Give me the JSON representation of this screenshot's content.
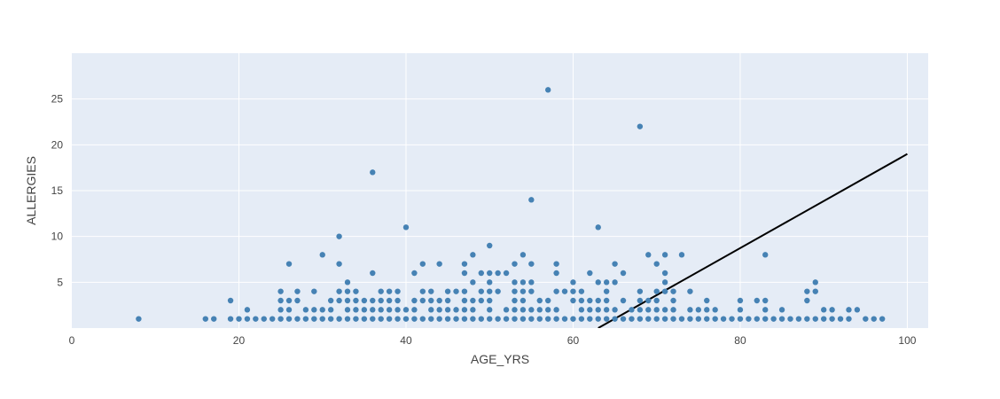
{
  "chart_data": {
    "type": "scatter",
    "xlabel": "AGE_YRS",
    "ylabel": "ALLERGIES",
    "xlim": [
      0,
      102.5
    ],
    "ylim": [
      0,
      30
    ],
    "x_ticks": [
      0,
      20,
      40,
      60,
      80,
      100
    ],
    "y_ticks": [
      5,
      10,
      15,
      20,
      25
    ],
    "grid": true,
    "legend": "none",
    "colors": {
      "plot_bg": "#e5ecf6",
      "grid": "#ffffff",
      "marker": "#4682b4",
      "line": "#000000"
    },
    "series": [
      {
        "type": "scatter",
        "points": [
          [
            8,
            1
          ],
          [
            16,
            1
          ],
          [
            17,
            1
          ],
          [
            19,
            1
          ],
          [
            19,
            3
          ],
          [
            20,
            1
          ],
          [
            21,
            1
          ],
          [
            21,
            2
          ],
          [
            22,
            1
          ],
          [
            23,
            1
          ],
          [
            24,
            1
          ],
          [
            25,
            1
          ],
          [
            25,
            2
          ],
          [
            25,
            3
          ],
          [
            25,
            4
          ],
          [
            26,
            1
          ],
          [
            26,
            2
          ],
          [
            26,
            3
          ],
          [
            26,
            7
          ],
          [
            27,
            1
          ],
          [
            27,
            3
          ],
          [
            27,
            4
          ],
          [
            28,
            1
          ],
          [
            28,
            2
          ],
          [
            29,
            1
          ],
          [
            29,
            2
          ],
          [
            29,
            4
          ],
          [
            30,
            1
          ],
          [
            30,
            2
          ],
          [
            30,
            8
          ],
          [
            31,
            1
          ],
          [
            31,
            2
          ],
          [
            31,
            3
          ],
          [
            32,
            1
          ],
          [
            32,
            3
          ],
          [
            32,
            4
          ],
          [
            32,
            7
          ],
          [
            32,
            10
          ],
          [
            33,
            1
          ],
          [
            33,
            2
          ],
          [
            33,
            3
          ],
          [
            33,
            4
          ],
          [
            33,
            5
          ],
          [
            34,
            1
          ],
          [
            34,
            2
          ],
          [
            34,
            3
          ],
          [
            34,
            4
          ],
          [
            35,
            1
          ],
          [
            35,
            2
          ],
          [
            35,
            3
          ],
          [
            36,
            1
          ],
          [
            36,
            2
          ],
          [
            36,
            3
          ],
          [
            36,
            6
          ],
          [
            36,
            17
          ],
          [
            37,
            1
          ],
          [
            37,
            2
          ],
          [
            37,
            3
          ],
          [
            37,
            4
          ],
          [
            38,
            1
          ],
          [
            38,
            2
          ],
          [
            38,
            3
          ],
          [
            38,
            4
          ],
          [
            39,
            1
          ],
          [
            39,
            2
          ],
          [
            39,
            3
          ],
          [
            39,
            4
          ],
          [
            40,
            1
          ],
          [
            40,
            2
          ],
          [
            40,
            11
          ],
          [
            41,
            1
          ],
          [
            41,
            2
          ],
          [
            41,
            3
          ],
          [
            41,
            6
          ],
          [
            42,
            1
          ],
          [
            42,
            3
          ],
          [
            42,
            4
          ],
          [
            42,
            7
          ],
          [
            43,
            1
          ],
          [
            43,
            2
          ],
          [
            43,
            3
          ],
          [
            43,
            4
          ],
          [
            44,
            1
          ],
          [
            44,
            2
          ],
          [
            44,
            3
          ],
          [
            44,
            7
          ],
          [
            45,
            1
          ],
          [
            45,
            2
          ],
          [
            45,
            3
          ],
          [
            45,
            4
          ],
          [
            46,
            1
          ],
          [
            46,
            2
          ],
          [
            46,
            4
          ],
          [
            47,
            1
          ],
          [
            47,
            2
          ],
          [
            47,
            3
          ],
          [
            47,
            4
          ],
          [
            47,
            6
          ],
          [
            47,
            7
          ],
          [
            48,
            1
          ],
          [
            48,
            2
          ],
          [
            48,
            3
          ],
          [
            48,
            5
          ],
          [
            48,
            8
          ],
          [
            49,
            1
          ],
          [
            49,
            3
          ],
          [
            49,
            4
          ],
          [
            49,
            6
          ],
          [
            50,
            1
          ],
          [
            50,
            2
          ],
          [
            50,
            3
          ],
          [
            50,
            4
          ],
          [
            50,
            5
          ],
          [
            50,
            6
          ],
          [
            50,
            9
          ],
          [
            51,
            1
          ],
          [
            51,
            4
          ],
          [
            51,
            6
          ],
          [
            52,
            1
          ],
          [
            52,
            2
          ],
          [
            52,
            6
          ],
          [
            53,
            1
          ],
          [
            53,
            2
          ],
          [
            53,
            3
          ],
          [
            53,
            4
          ],
          [
            53,
            5
          ],
          [
            53,
            7
          ],
          [
            54,
            1
          ],
          [
            54,
            2
          ],
          [
            54,
            3
          ],
          [
            54,
            4
          ],
          [
            54,
            5
          ],
          [
            54,
            8
          ],
          [
            55,
            1
          ],
          [
            55,
            2
          ],
          [
            55,
            4
          ],
          [
            55,
            5
          ],
          [
            55,
            7
          ],
          [
            55,
            14
          ],
          [
            56,
            1
          ],
          [
            56,
            2
          ],
          [
            56,
            3
          ],
          [
            57,
            1
          ],
          [
            57,
            2
          ],
          [
            57,
            3
          ],
          [
            57,
            26
          ],
          [
            58,
            1
          ],
          [
            58,
            2
          ],
          [
            58,
            4
          ],
          [
            58,
            6
          ],
          [
            58,
            7
          ],
          [
            59,
            1
          ],
          [
            59,
            4
          ],
          [
            60,
            1
          ],
          [
            60,
            3
          ],
          [
            60,
            4
          ],
          [
            60,
            5
          ],
          [
            61,
            1
          ],
          [
            61,
            2
          ],
          [
            61,
            3
          ],
          [
            61,
            4
          ],
          [
            62,
            1
          ],
          [
            62,
            2
          ],
          [
            62,
            3
          ],
          [
            62,
            6
          ],
          [
            63,
            1
          ],
          [
            63,
            2
          ],
          [
            63,
            3
          ],
          [
            63,
            5
          ],
          [
            63,
            11
          ],
          [
            64,
            1
          ],
          [
            64,
            2
          ],
          [
            64,
            3
          ],
          [
            64,
            4
          ],
          [
            64,
            5
          ],
          [
            65,
            1
          ],
          [
            65,
            2
          ],
          [
            65,
            5
          ],
          [
            65,
            7
          ],
          [
            66,
            1
          ],
          [
            66,
            3
          ],
          [
            66,
            6
          ],
          [
            67,
            1
          ],
          [
            67,
            2
          ],
          [
            68,
            1
          ],
          [
            68,
            2
          ],
          [
            68,
            3
          ],
          [
            68,
            4
          ],
          [
            68,
            22
          ],
          [
            69,
            1
          ],
          [
            69,
            2
          ],
          [
            69,
            3
          ],
          [
            69,
            8
          ],
          [
            70,
            1
          ],
          [
            70,
            2
          ],
          [
            70,
            3
          ],
          [
            70,
            4
          ],
          [
            70,
            7
          ],
          [
            71,
            1
          ],
          [
            71,
            2
          ],
          [
            71,
            4
          ],
          [
            71,
            5
          ],
          [
            71,
            6
          ],
          [
            71,
            8
          ],
          [
            72,
            1
          ],
          [
            72,
            2
          ],
          [
            72,
            3
          ],
          [
            72,
            4
          ],
          [
            73,
            1
          ],
          [
            73,
            8
          ],
          [
            74,
            1
          ],
          [
            74,
            2
          ],
          [
            74,
            4
          ],
          [
            75,
            1
          ],
          [
            75,
            2
          ],
          [
            76,
            1
          ],
          [
            76,
            2
          ],
          [
            76,
            3
          ],
          [
            77,
            1
          ],
          [
            77,
            2
          ],
          [
            78,
            1
          ],
          [
            79,
            1
          ],
          [
            80,
            1
          ],
          [
            80,
            2
          ],
          [
            80,
            3
          ],
          [
            81,
            1
          ],
          [
            82,
            1
          ],
          [
            82,
            3
          ],
          [
            83,
            1
          ],
          [
            83,
            2
          ],
          [
            83,
            3
          ],
          [
            83,
            8
          ],
          [
            84,
            1
          ],
          [
            85,
            1
          ],
          [
            85,
            2
          ],
          [
            86,
            1
          ],
          [
            87,
            1
          ],
          [
            88,
            1
          ],
          [
            88,
            3
          ],
          [
            88,
            4
          ],
          [
            89,
            1
          ],
          [
            89,
            4
          ],
          [
            89,
            5
          ],
          [
            90,
            1
          ],
          [
            90,
            2
          ],
          [
            91,
            1
          ],
          [
            91,
            2
          ],
          [
            92,
            1
          ],
          [
            93,
            1
          ],
          [
            93,
            2
          ],
          [
            94,
            2
          ],
          [
            95,
            1
          ],
          [
            96,
            1
          ],
          [
            97,
            1
          ]
        ]
      },
      {
        "type": "line",
        "points": [
          [
            63,
            0
          ],
          [
            100,
            19
          ]
        ]
      }
    ]
  }
}
